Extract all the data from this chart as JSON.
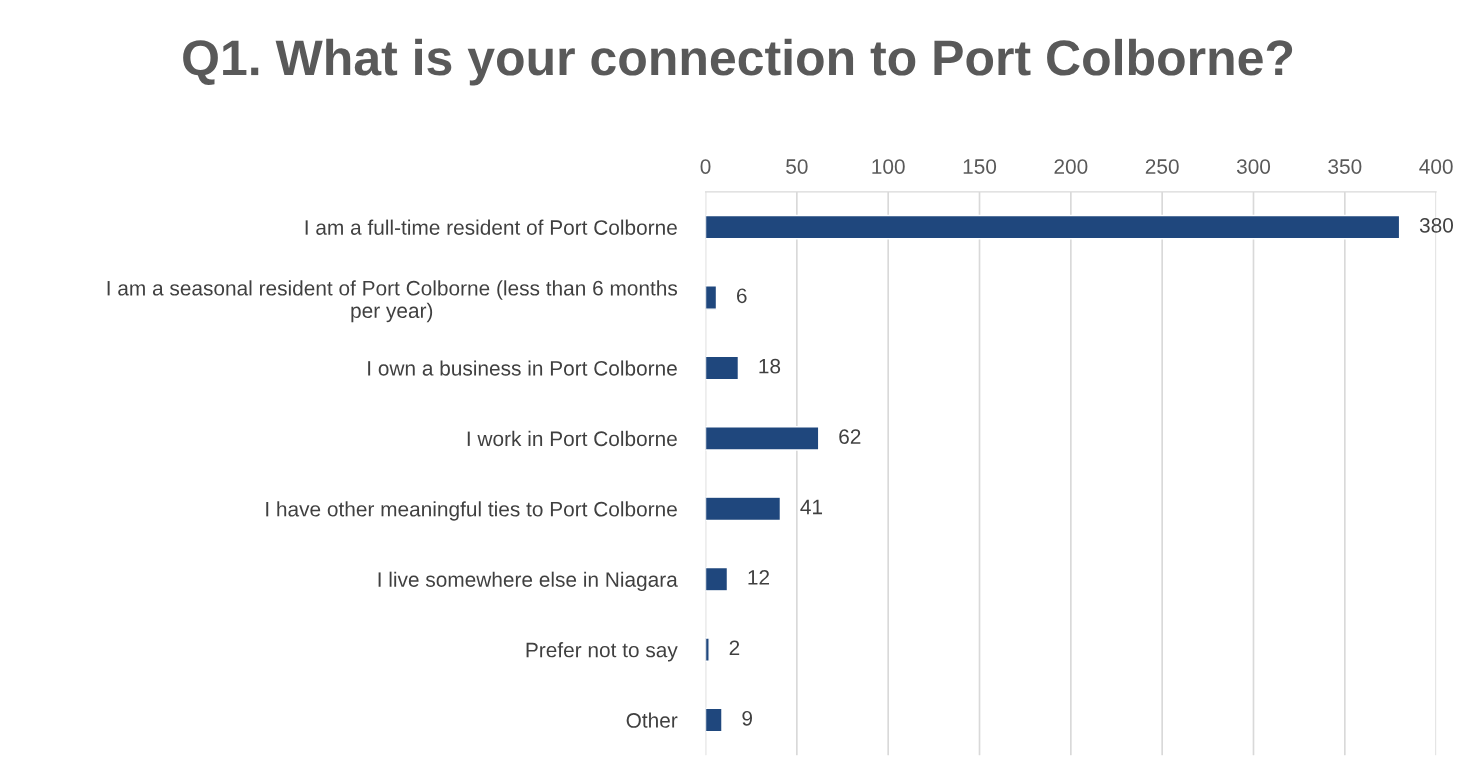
{
  "chart_data": {
    "type": "bar",
    "orientation": "horizontal",
    "title": "Q1. What is your connection to Port Colborne?",
    "categories": [
      "I am a full-time resident of Port Colborne",
      "I am a seasonal resident of Port Colborne (less than 6 months\nper year)",
      "I own a business in Port Colborne",
      "I work in Port Colborne",
      "I have other meaningful ties to Port Colborne",
      "I live somewhere else in Niagara",
      "Prefer not to say",
      "Other"
    ],
    "values": [
      380,
      6,
      18,
      62,
      41,
      12,
      2,
      9
    ],
    "color": "#1f477d",
    "xlim": [
      0,
      400
    ],
    "xticks": [
      0,
      50,
      100,
      150,
      200,
      250,
      300,
      350,
      400
    ],
    "grid": "x",
    "data_labels": true
  }
}
